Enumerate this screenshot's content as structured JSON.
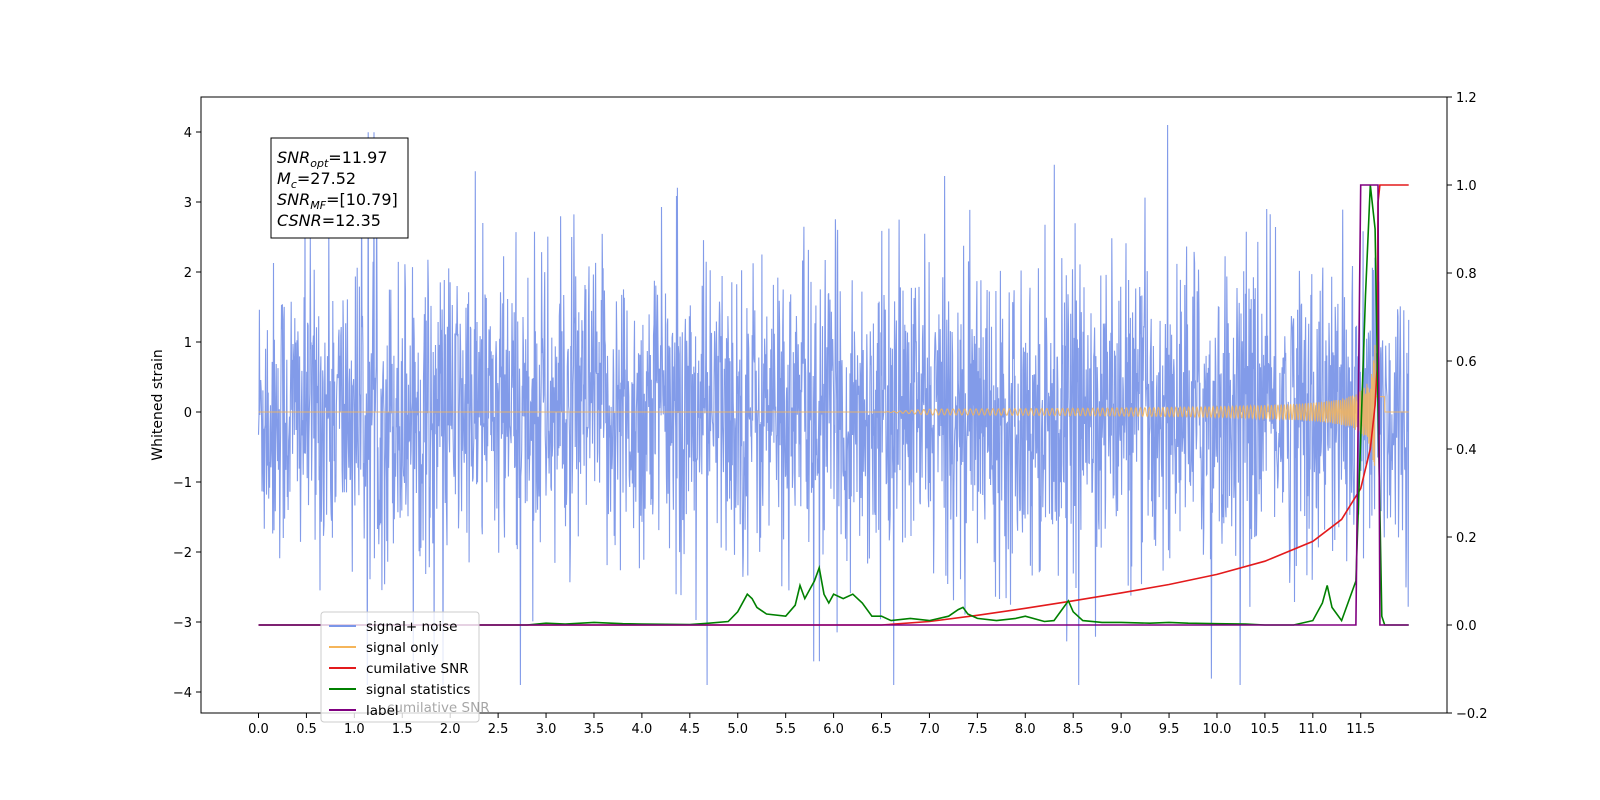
{
  "chart_data": {
    "type": "line",
    "title": "",
    "xlabel": "",
    "ylabel": "Whitened strain",
    "xlim": [
      -0.6,
      12.4
    ],
    "ylim": [
      -4.3,
      4.5
    ],
    "y2lim": [
      -0.2,
      1.2
    ],
    "grid": false,
    "x_ticks": [
      "0.0",
      "0.5",
      "1.0",
      "1.5",
      "2.0",
      "2.5",
      "3.0",
      "3.5",
      "4.0",
      "4.5",
      "5.0",
      "5.5",
      "6.0",
      "6.5",
      "7.0",
      "7.5",
      "8.0",
      "8.5",
      "9.0",
      "9.5",
      "10.0",
      "10.5",
      "11.0",
      "11.5"
    ],
    "y_ticks": [
      "4",
      "3",
      "2",
      "1",
      "0",
      "−1",
      "−2",
      "−3",
      "−4"
    ],
    "y2_ticks": [
      "1.2",
      "1.0",
      "0.8",
      "0.6",
      "0.4",
      "0.2",
      "0.0",
      "−0.2"
    ],
    "annotation": {
      "lines": [
        {
          "sym": "SNR",
          "sub": "opt",
          "val": "=11.97"
        },
        {
          "sym": "M",
          "sub": "c",
          "val": "=27.52"
        },
        {
          "sym": "SNR",
          "sub": "MF",
          "val": "=[10.79]"
        },
        {
          "sym": "CSNR",
          "sub": "",
          "val": "=12.35"
        }
      ]
    },
    "legend": {
      "placement": "lower-left",
      "entries": [
        {
          "label": "signal+ noise",
          "color": "#7b96e8"
        },
        {
          "label": "signal only",
          "color": "#f5b55a"
        },
        {
          "label": "cumilative SNR",
          "color": "#e31a1c"
        },
        {
          "label": "signal statistics",
          "color": "#008000"
        },
        {
          "label": "label",
          "color": "#800080"
        }
      ],
      "hidden_text": "cumilative SNR"
    },
    "series": [
      {
        "name": "signal+ noise",
        "axis": "left",
        "color": "#7b96e8",
        "x_range": [
          0.0,
          12.0
        ],
        "description_stats": {
          "typical_amplitude": 1.6,
          "max": 4.1,
          "min": -3.9
        }
      },
      {
        "name": "signal only",
        "axis": "left",
        "color": "#f5b55a",
        "chirp": {
          "start": 6.5,
          "peak_time": 11.65,
          "peak_amp": 1.1,
          "end": 11.75
        }
      },
      {
        "name": "cumilative SNR",
        "axis": "right",
        "color": "#e31a1c",
        "x": [
          0.0,
          6.5,
          7.0,
          7.5,
          8.0,
          8.5,
          9.0,
          9.5,
          10.0,
          10.5,
          11.0,
          11.3,
          11.5,
          11.6,
          11.65,
          11.67,
          11.68,
          11.7,
          12.0
        ],
        "y": [
          0.0,
          0.0,
          0.008,
          0.022,
          0.038,
          0.055,
          0.073,
          0.092,
          0.115,
          0.145,
          0.19,
          0.24,
          0.31,
          0.4,
          0.5,
          0.58,
          0.96,
          1.0,
          1.0
        ]
      },
      {
        "name": "signal statistics",
        "axis": "right",
        "color": "#008000",
        "x": [
          0.0,
          2.5,
          2.8,
          3.0,
          3.2,
          3.5,
          3.8,
          4.0,
          4.5,
          4.7,
          4.9,
          5.0,
          5.1,
          5.15,
          5.2,
          5.3,
          5.5,
          5.6,
          5.65,
          5.7,
          5.75,
          5.8,
          5.85,
          5.9,
          5.95,
          6.0,
          6.1,
          6.2,
          6.3,
          6.4,
          6.5,
          6.6,
          6.8,
          7.0,
          7.2,
          7.3,
          7.35,
          7.4,
          7.5,
          7.7,
          7.9,
          8.0,
          8.2,
          8.3,
          8.4,
          8.45,
          8.5,
          8.6,
          8.8,
          9.0,
          9.3,
          9.5,
          9.7,
          10.0,
          10.3,
          10.5,
          10.8,
          11.0,
          11.1,
          11.15,
          11.2,
          11.3,
          11.45,
          11.55,
          11.6,
          11.65,
          11.68,
          11.72,
          11.75,
          12.0
        ],
        "y": [
          0.0,
          0.0,
          0.0,
          0.004,
          0.002,
          0.006,
          0.003,
          0.002,
          0.001,
          0.004,
          0.008,
          0.03,
          0.07,
          0.06,
          0.04,
          0.025,
          0.02,
          0.045,
          0.09,
          0.06,
          0.08,
          0.1,
          0.13,
          0.07,
          0.05,
          0.07,
          0.06,
          0.07,
          0.05,
          0.02,
          0.02,
          0.01,
          0.015,
          0.01,
          0.02,
          0.035,
          0.04,
          0.025,
          0.015,
          0.01,
          0.015,
          0.02,
          0.008,
          0.01,
          0.04,
          0.055,
          0.03,
          0.01,
          0.006,
          0.006,
          0.004,
          0.006,
          0.004,
          0.003,
          0.002,
          0.0,
          0.0,
          0.01,
          0.05,
          0.09,
          0.04,
          0.01,
          0.1,
          0.75,
          1.0,
          0.9,
          0.5,
          0.02,
          0.0,
          0.0
        ]
      },
      {
        "name": "label",
        "axis": "right",
        "color": "#800080",
        "x": [
          0.0,
          11.45,
          11.5,
          11.68,
          11.7,
          12.0
        ],
        "y": [
          0.0,
          0.0,
          1.0,
          1.0,
          0.0,
          0.0
        ]
      }
    ]
  }
}
